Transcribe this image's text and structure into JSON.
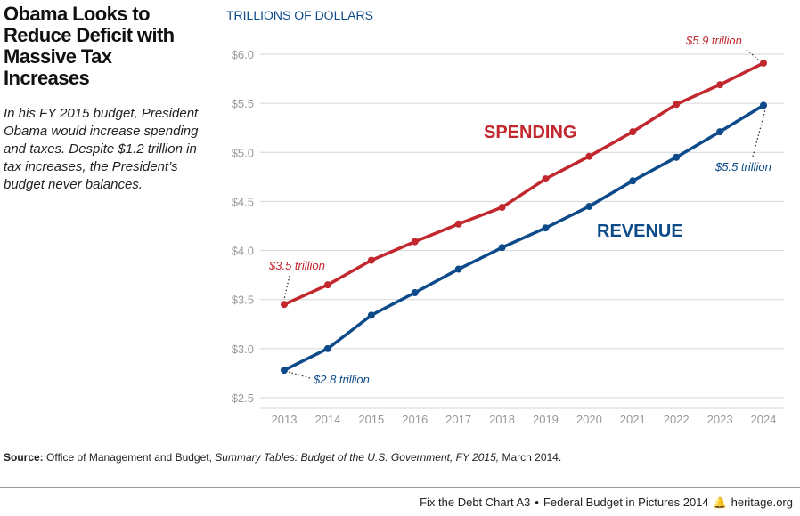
{
  "headline": "Obama Looks to Reduce Deficit with Massive Tax Increases",
  "deck": "In his FY 2015 budget, President Obama would increase spending and taxes. Despite $1.2 trillion in tax increases, the President’s budget never balances.",
  "source": {
    "label": "Source:",
    "text_before": "Office of Management and Budget,",
    "italic": "Summary Tables: Budget of the U.S. Government, FY 2015,",
    "text_after": "March 2014."
  },
  "footer": {
    "chart_id": "Fix the Debt Chart A3",
    "separator": "•",
    "publication": "Federal Budget in Pictures 2014",
    "site": "heritage.org"
  },
  "colors": {
    "spending": "#c1272d",
    "revenue": "#0c4a8a",
    "grid": "#d6d6d6",
    "tick": "#999999"
  },
  "chart_data": {
    "type": "line",
    "title": "",
    "ylabel": "TRILLIONS OF DOLLARS",
    "xlabel": "",
    "x": [
      2013,
      2014,
      2015,
      2016,
      2017,
      2018,
      2019,
      2020,
      2021,
      2022,
      2023,
      2024
    ],
    "ylim": [
      2.5,
      6.0
    ],
    "yticks": [
      2.5,
      3.0,
      3.5,
      4.0,
      4.5,
      5.0,
      5.5,
      6.0
    ],
    "ytick_labels": [
      "$2.5",
      "$3.0",
      "$3.5",
      "$4.0",
      "$4.5",
      "$5.0",
      "$5.5",
      "$6.0"
    ],
    "grid": true,
    "series": [
      {
        "name": "SPENDING",
        "values": [
          3.45,
          3.65,
          3.9,
          4.09,
          4.27,
          4.44,
          4.73,
          4.96,
          5.21,
          5.49,
          5.69,
          5.91
        ]
      },
      {
        "name": "REVENUE",
        "values": [
          2.78,
          3.0,
          3.34,
          3.57,
          3.81,
          4.03,
          4.23,
          4.45,
          4.71,
          4.95,
          5.21,
          5.48
        ]
      }
    ],
    "annotations": [
      {
        "text": "$3.5 trillion",
        "series": 0,
        "x": 2013
      },
      {
        "text": "$5.9 trillion",
        "series": 0,
        "x": 2024
      },
      {
        "text": "$2.8 trillion",
        "series": 1,
        "x": 2013
      },
      {
        "text": "$5.5 trillion",
        "series": 1,
        "x": 2024
      }
    ]
  }
}
